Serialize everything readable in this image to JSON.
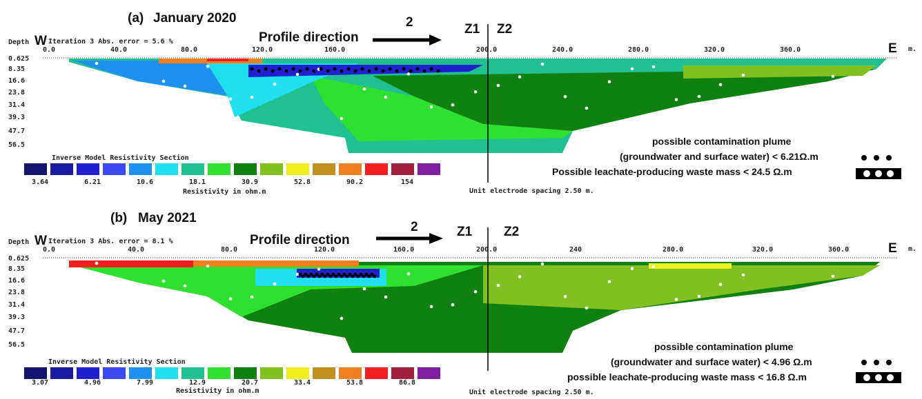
{
  "panels": [
    {
      "label": "(a)",
      "date": "January 2020",
      "profile_direction": "Profile direction",
      "direction_number": "2",
      "zones": [
        "Z1",
        "Z2"
      ],
      "depth_label": "Depth",
      "west_label": "W",
      "east_label": "E",
      "unit_label": "m.",
      "iteration": "Iteration 3 Abs. error = 5.6 %",
      "x_ticks": [
        "0.0",
        "40.0",
        "80.0",
        "120.0",
        "160.0",
        "200.0",
        "240.0",
        "280.0",
        "320.0",
        "360.0"
      ],
      "depth_ticks": [
        "0.625",
        "8.35",
        "16.6",
        "23.8",
        "31.4",
        "39.3",
        "47.7",
        "56.5"
      ],
      "scale_title": "Inverse Model Resistivity Section",
      "scale_values": [
        "3.64",
        "6.21",
        "10.6",
        "18.1",
        "30.9",
        "52.8",
        "90.2",
        "154"
      ],
      "scale_unit": "Resistivity in ohm.m",
      "electrode_spacing": "Unit electrode spacing 2.50 m.",
      "legend": [
        "possible contamination plume",
        "(groundwater and surface water)  < 6.21Ω.m",
        "Possible leachate-producing waste mass < 24.5 Ω.m"
      ]
    },
    {
      "label": "(b)",
      "date": "May 2021",
      "profile_direction": "Profile direction",
      "direction_number": "2",
      "zones": [
        "Z1",
        "Z2"
      ],
      "depth_label": "Depth",
      "west_label": "W",
      "east_label": "E",
      "unit_label": "m.",
      "iteration": "Iteration 3 Abs. error = 8.1 %",
      "x_ticks": [
        "0.0",
        "40.0",
        "80.0",
        "120.0",
        "160.0",
        "200.0",
        "240",
        "280.0",
        "320.0",
        "360.0"
      ],
      "depth_ticks": [
        "0.625",
        "8.35",
        "16.6",
        "23.8",
        "31.4",
        "39.3",
        "47.7",
        "56.5"
      ],
      "scale_title": "Inverse Model Resistivity Section",
      "scale_values": [
        "3.07",
        "4.96",
        "7.99",
        "12.9",
        "20.7",
        "33.4",
        "53.8",
        "86.8"
      ],
      "scale_unit": "Resistivity in ohm.m",
      "electrode_spacing": "Unit electrode spacing 2.50 m.",
      "legend": [
        "possible contamination plume",
        "(groundwater and surface water)  < 4.96 Ω.m",
        "possible leachate-producing waste mass < 16.8 Ω.m"
      ]
    }
  ]
}
